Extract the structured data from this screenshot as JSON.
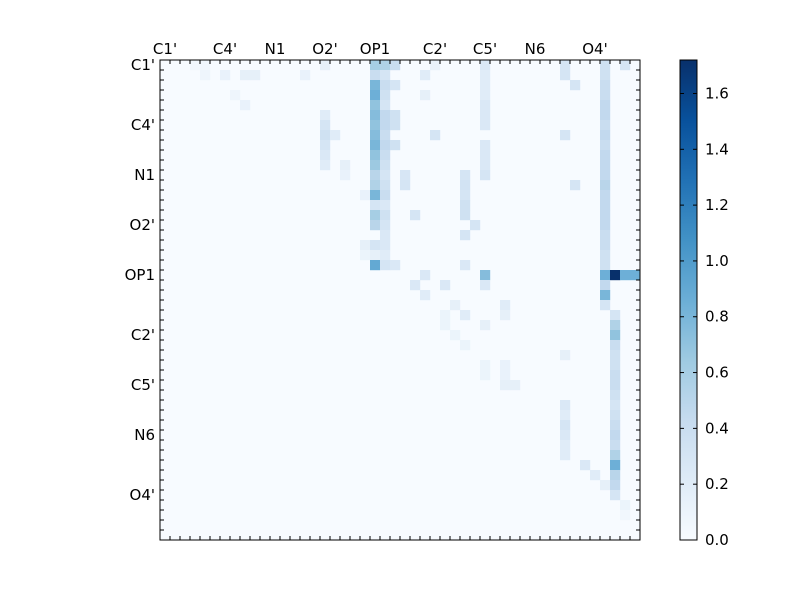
{
  "chart_data": {
    "type": "heatmap",
    "title": "",
    "xlabel": "",
    "ylabel": "",
    "grid_size": 48,
    "x_tick_labels": [
      "C1'",
      "C4'",
      "N1",
      "O2'",
      "OP1",
      "C2'",
      "C5'",
      "N6",
      "O4'"
    ],
    "x_tick_positions": [
      0,
      6,
      11,
      16,
      21,
      27,
      32,
      37,
      43
    ],
    "y_tick_labels": [
      "C1'",
      "C4'",
      "N1",
      "O2'",
      "OP1",
      "C2'",
      "C5'",
      "N6",
      "O4'"
    ],
    "y_tick_positions": [
      0,
      6,
      11,
      16,
      21,
      27,
      32,
      37,
      43
    ],
    "colormap": "Blues",
    "colorbar": {
      "range": [
        0.0,
        1.72
      ],
      "ticks": [
        0.0,
        0.2,
        0.4,
        0.6,
        0.8,
        1.0,
        1.2,
        1.4,
        1.6
      ],
      "tick_labels": [
        "0.0",
        "0.2",
        "0.4",
        "0.6",
        "0.8",
        "1.0",
        "1.2",
        "1.4",
        "1.6"
      ]
    },
    "matrix_shape": "upper-triangular",
    "cells": [
      [
        0,
        3,
        0.05
      ],
      [
        0,
        4,
        0.05
      ],
      [
        0,
        16,
        0.15
      ],
      [
        0,
        21,
        0.6
      ],
      [
        0,
        22,
        0.55
      ],
      [
        0,
        23,
        0.4
      ],
      [
        0,
        27,
        0.12
      ],
      [
        0,
        32,
        0.25
      ],
      [
        0,
        40,
        0.3
      ],
      [
        0,
        44,
        0.35
      ],
      [
        0,
        46,
        0.3
      ],
      [
        1,
        4,
        0.08
      ],
      [
        1,
        6,
        0.12
      ],
      [
        1,
        8,
        0.15
      ],
      [
        1,
        9,
        0.15
      ],
      [
        1,
        14,
        0.12
      ],
      [
        1,
        21,
        0.4
      ],
      [
        1,
        22,
        0.3
      ],
      [
        1,
        26,
        0.2
      ],
      [
        1,
        32,
        0.2
      ],
      [
        1,
        40,
        0.3
      ],
      [
        1,
        44,
        0.35
      ],
      [
        2,
        21,
        0.8
      ],
      [
        2,
        22,
        0.4
      ],
      [
        2,
        23,
        0.3
      ],
      [
        2,
        32,
        0.2
      ],
      [
        2,
        41,
        0.3
      ],
      [
        2,
        44,
        0.4
      ],
      [
        3,
        7,
        0.08
      ],
      [
        3,
        21,
        0.85
      ],
      [
        3,
        22,
        0.35
      ],
      [
        3,
        26,
        0.15
      ],
      [
        3,
        32,
        0.2
      ],
      [
        3,
        44,
        0.4
      ],
      [
        4,
        8,
        0.12
      ],
      [
        4,
        21,
        0.7
      ],
      [
        4,
        22,
        0.3
      ],
      [
        4,
        32,
        0.25
      ],
      [
        4,
        44,
        0.45
      ],
      [
        5,
        16,
        0.2
      ],
      [
        5,
        21,
        0.75
      ],
      [
        5,
        22,
        0.45
      ],
      [
        5,
        23,
        0.35
      ],
      [
        5,
        32,
        0.25
      ],
      [
        5,
        44,
        0.45
      ],
      [
        6,
        16,
        0.3
      ],
      [
        6,
        21,
        0.7
      ],
      [
        6,
        22,
        0.45
      ],
      [
        6,
        23,
        0.35
      ],
      [
        6,
        32,
        0.25
      ],
      [
        6,
        44,
        0.4
      ],
      [
        7,
        16,
        0.35
      ],
      [
        7,
        17,
        0.2
      ],
      [
        7,
        21,
        0.75
      ],
      [
        7,
        22,
        0.4
      ],
      [
        7,
        27,
        0.3
      ],
      [
        7,
        40,
        0.3
      ],
      [
        7,
        44,
        0.45
      ],
      [
        8,
        16,
        0.3
      ],
      [
        8,
        21,
        0.8
      ],
      [
        8,
        22,
        0.45
      ],
      [
        8,
        23,
        0.35
      ],
      [
        8,
        32,
        0.25
      ],
      [
        8,
        44,
        0.4
      ],
      [
        9,
        16,
        0.25
      ],
      [
        9,
        21,
        0.7
      ],
      [
        9,
        22,
        0.4
      ],
      [
        9,
        32,
        0.25
      ],
      [
        9,
        44,
        0.45
      ],
      [
        10,
        16,
        0.2
      ],
      [
        10,
        18,
        0.15
      ],
      [
        10,
        21,
        0.65
      ],
      [
        10,
        22,
        0.35
      ],
      [
        10,
        32,
        0.25
      ],
      [
        10,
        44,
        0.45
      ],
      [
        11,
        18,
        0.12
      ],
      [
        11,
        21,
        0.5
      ],
      [
        11,
        22,
        0.3
      ],
      [
        11,
        24,
        0.28
      ],
      [
        11,
        30,
        0.3
      ],
      [
        11,
        32,
        0.3
      ],
      [
        11,
        44,
        0.45
      ],
      [
        12,
        21,
        0.55
      ],
      [
        12,
        22,
        0.35
      ],
      [
        12,
        24,
        0.3
      ],
      [
        12,
        30,
        0.32
      ],
      [
        12,
        41,
        0.3
      ],
      [
        12,
        44,
        0.5
      ],
      [
        13,
        20,
        0.12
      ],
      [
        13,
        21,
        0.8
      ],
      [
        13,
        22,
        0.4
      ],
      [
        13,
        30,
        0.3
      ],
      [
        13,
        44,
        0.45
      ],
      [
        14,
        21,
        0.3
      ],
      [
        14,
        22,
        0.25
      ],
      [
        14,
        30,
        0.35
      ],
      [
        14,
        44,
        0.45
      ],
      [
        15,
        21,
        0.6
      ],
      [
        15,
        22,
        0.35
      ],
      [
        15,
        25,
        0.3
      ],
      [
        15,
        30,
        0.35
      ],
      [
        15,
        44,
        0.45
      ],
      [
        16,
        21,
        0.5
      ],
      [
        16,
        22,
        0.3
      ],
      [
        16,
        31,
        0.3
      ],
      [
        16,
        44,
        0.45
      ],
      [
        17,
        22,
        0.25
      ],
      [
        17,
        30,
        0.3
      ],
      [
        17,
        44,
        0.4
      ],
      [
        18,
        20,
        0.15
      ],
      [
        18,
        21,
        0.3
      ],
      [
        18,
        22,
        0.25
      ],
      [
        18,
        44,
        0.4
      ],
      [
        19,
        20,
        0.1
      ],
      [
        19,
        21,
        0.15
      ],
      [
        19,
        22,
        0.2
      ],
      [
        19,
        44,
        0.35
      ],
      [
        20,
        21,
        0.9
      ],
      [
        20,
        22,
        0.3
      ],
      [
        20,
        23,
        0.25
      ],
      [
        20,
        30,
        0.25
      ],
      [
        20,
        44,
        0.35
      ],
      [
        21,
        26,
        0.25
      ],
      [
        21,
        32,
        0.75
      ],
      [
        21,
        44,
        0.85
      ],
      [
        21,
        45,
        1.72
      ],
      [
        21,
        46,
        0.85
      ],
      [
        21,
        47,
        0.85
      ],
      [
        22,
        25,
        0.25
      ],
      [
        22,
        28,
        0.25
      ],
      [
        22,
        32,
        0.25
      ],
      [
        22,
        44,
        0.45
      ],
      [
        23,
        26,
        0.2
      ],
      [
        23,
        44,
        0.8
      ],
      [
        24,
        29,
        0.15
      ],
      [
        24,
        34,
        0.2
      ],
      [
        24,
        44,
        0.3
      ],
      [
        25,
        28,
        0.1
      ],
      [
        25,
        30,
        0.2
      ],
      [
        25,
        34,
        0.15
      ],
      [
        25,
        45,
        0.3
      ],
      [
        26,
        28,
        0.1
      ],
      [
        26,
        32,
        0.15
      ],
      [
        26,
        45,
        0.55
      ],
      [
        27,
        29,
        0.1
      ],
      [
        27,
        45,
        0.7
      ],
      [
        28,
        30,
        0.1
      ],
      [
        28,
        45,
        0.4
      ],
      [
        29,
        40,
        0.15
      ],
      [
        29,
        45,
        0.35
      ],
      [
        30,
        32,
        0.1
      ],
      [
        30,
        34,
        0.12
      ],
      [
        30,
        45,
        0.35
      ],
      [
        31,
        32,
        0.1
      ],
      [
        31,
        34,
        0.12
      ],
      [
        31,
        45,
        0.4
      ],
      [
        32,
        34,
        0.15
      ],
      [
        32,
        35,
        0.15
      ],
      [
        32,
        45,
        0.4
      ],
      [
        33,
        45,
        0.35
      ],
      [
        34,
        40,
        0.25
      ],
      [
        34,
        45,
        0.3
      ],
      [
        35,
        40,
        0.2
      ],
      [
        35,
        45,
        0.35
      ],
      [
        36,
        40,
        0.3
      ],
      [
        36,
        45,
        0.4
      ],
      [
        37,
        40,
        0.25
      ],
      [
        37,
        45,
        0.45
      ],
      [
        38,
        40,
        0.2
      ],
      [
        38,
        45,
        0.4
      ],
      [
        39,
        40,
        0.2
      ],
      [
        39,
        45,
        0.55
      ],
      [
        40,
        42,
        0.25
      ],
      [
        40,
        45,
        0.85
      ],
      [
        41,
        43,
        0.2
      ],
      [
        41,
        45,
        0.5
      ],
      [
        42,
        44,
        0.15
      ],
      [
        42,
        45,
        0.45
      ],
      [
        43,
        45,
        0.3
      ],
      [
        44,
        46,
        0.1
      ],
      [
        45,
        46,
        0.05
      ]
    ]
  }
}
